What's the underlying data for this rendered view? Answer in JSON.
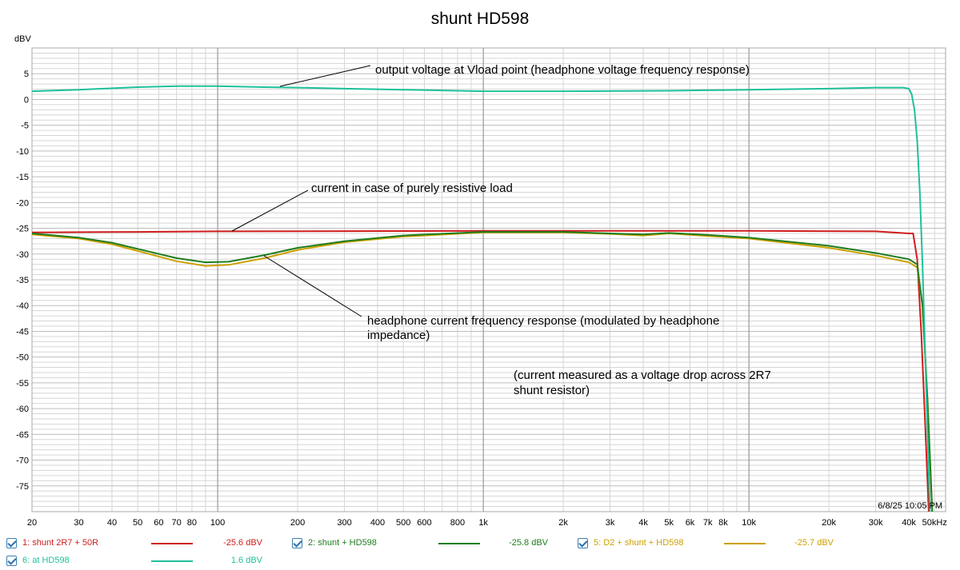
{
  "colors": {
    "red": "#d01c1c",
    "green": "#1e7d1e",
    "gold": "#cca000",
    "teal": "#1ec09a",
    "grid_major": "#8c8c8c",
    "grid_minor": "#d6d6d6"
  },
  "chart_data": {
    "type": "line",
    "title": "shunt HD598",
    "ylabel": "dBV",
    "xscale": "log",
    "xlim": [
      20,
      55000
    ],
    "ylim": [
      -80,
      10
    ],
    "grid": true,
    "y_ticks": [
      5,
      0,
      -5,
      -10,
      -15,
      -20,
      -25,
      -30,
      -35,
      -40,
      -45,
      -50,
      -55,
      -60,
      -65,
      -70,
      -75
    ],
    "x_ticks": [
      {
        "v": 20,
        "label": "20"
      },
      {
        "v": 30,
        "label": "30"
      },
      {
        "v": 40,
        "label": "40"
      },
      {
        "v": 50,
        "label": "50"
      },
      {
        "v": 60,
        "label": "60"
      },
      {
        "v": 70,
        "label": "70"
      },
      {
        "v": 80,
        "label": "80"
      },
      {
        "v": 100,
        "label": "100"
      },
      {
        "v": 200,
        "label": "200"
      },
      {
        "v": 300,
        "label": "300"
      },
      {
        "v": 400,
        "label": "400"
      },
      {
        "v": 500,
        "label": "500"
      },
      {
        "v": 600,
        "label": "600"
      },
      {
        "v": 800,
        "label": "800"
      },
      {
        "v": 1000,
        "label": "1k"
      },
      {
        "v": 2000,
        "label": "2k"
      },
      {
        "v": 3000,
        "label": "3k"
      },
      {
        "v": 4000,
        "label": "4k"
      },
      {
        "v": 5000,
        "label": "5k"
      },
      {
        "v": 6000,
        "label": "6k"
      },
      {
        "v": 7000,
        "label": "7k"
      },
      {
        "v": 8000,
        "label": "8k"
      },
      {
        "v": 10000,
        "label": "10k"
      },
      {
        "v": 20000,
        "label": "20k"
      },
      {
        "v": 30000,
        "label": "30k"
      },
      {
        "v": 40000,
        "label": "40k"
      },
      {
        "v": 50000,
        "label": "50kHz"
      }
    ],
    "series": [
      {
        "name": "1: shunt 2R7 + 50R",
        "color": "#d01c1c",
        "value_label": "-25.6 dBV",
        "x": [
          20,
          50,
          100,
          1000,
          10000,
          30000,
          40000,
          41500,
          43000,
          44500,
          46000,
          47500
        ],
        "y": [
          -25.8,
          -25.7,
          -25.6,
          -25.5,
          -25.5,
          -25.6,
          -26.0,
          -26.0,
          -31.0,
          -45.0,
          -62.0,
          -80.0
        ]
      },
      {
        "name": "2: shunt + HD598",
        "color": "#1e7d1e",
        "value_label": "-25.8 dBV",
        "x": [
          20,
          30,
          40,
          50,
          70,
          90,
          110,
          150,
          200,
          300,
          500,
          1000,
          2000,
          3000,
          4000,
          5000,
          7000,
          10000,
          20000,
          30000,
          40000,
          43000,
          45000,
          47000,
          49000
        ],
        "y": [
          -26.0,
          -26.8,
          -27.8,
          -29.0,
          -30.8,
          -31.6,
          -31.5,
          -30.2,
          -28.8,
          -27.5,
          -26.4,
          -25.7,
          -25.7,
          -26.0,
          -26.2,
          -25.9,
          -26.3,
          -26.8,
          -28.4,
          -29.8,
          -31.0,
          -32.0,
          -40.0,
          -58.0,
          -80.0
        ]
      },
      {
        "name": "5: D2 + shunt + HD598",
        "color": "#cca000",
        "value_label": "-25.7 dBV",
        "x": [
          20,
          30,
          40,
          50,
          70,
          90,
          110,
          150,
          200,
          300,
          500,
          1000,
          2000,
          3000,
          4000,
          5000,
          7000,
          10000,
          20000,
          30000,
          40000,
          43000,
          45000,
          47000,
          49000
        ],
        "y": [
          -26.2,
          -27.0,
          -28.1,
          -29.4,
          -31.4,
          -32.3,
          -32.1,
          -30.8,
          -29.2,
          -27.7,
          -26.6,
          -25.8,
          -25.8,
          -26.1,
          -26.4,
          -26.0,
          -26.5,
          -27.0,
          -28.8,
          -30.3,
          -31.6,
          -32.6,
          -40.0,
          -58.0,
          -80.0
        ]
      },
      {
        "name": "6: at HD598",
        "color": "#1ec09a",
        "value_label": "1.6 dBV",
        "x": [
          20,
          30,
          50,
          70,
          100,
          150,
          200,
          300,
          500,
          1000,
          2000,
          5000,
          10000,
          20000,
          30000,
          38000,
          40000,
          41000,
          42000,
          43000,
          44000,
          45000,
          46000,
          47000,
          48000
        ],
        "y": [
          1.6,
          1.9,
          2.4,
          2.6,
          2.6,
          2.4,
          2.3,
          2.1,
          1.9,
          1.6,
          1.6,
          1.7,
          1.9,
          2.1,
          2.3,
          2.3,
          2.1,
          1.0,
          -2.0,
          -8.0,
          -18.0,
          -32.0,
          -48.0,
          -64.0,
          -80.0
        ]
      }
    ],
    "annotations": [
      "output voltage at Vload point (headphone voltage frequency response)",
      "current in case of purely resistive load",
      "headphone current frequency response (modulated by headphone",
      "impedance)",
      "(current measured as a voltage drop across 2R7",
      "shunt resistor)"
    ],
    "timestamp": "6/8/25 10:05 PM"
  }
}
